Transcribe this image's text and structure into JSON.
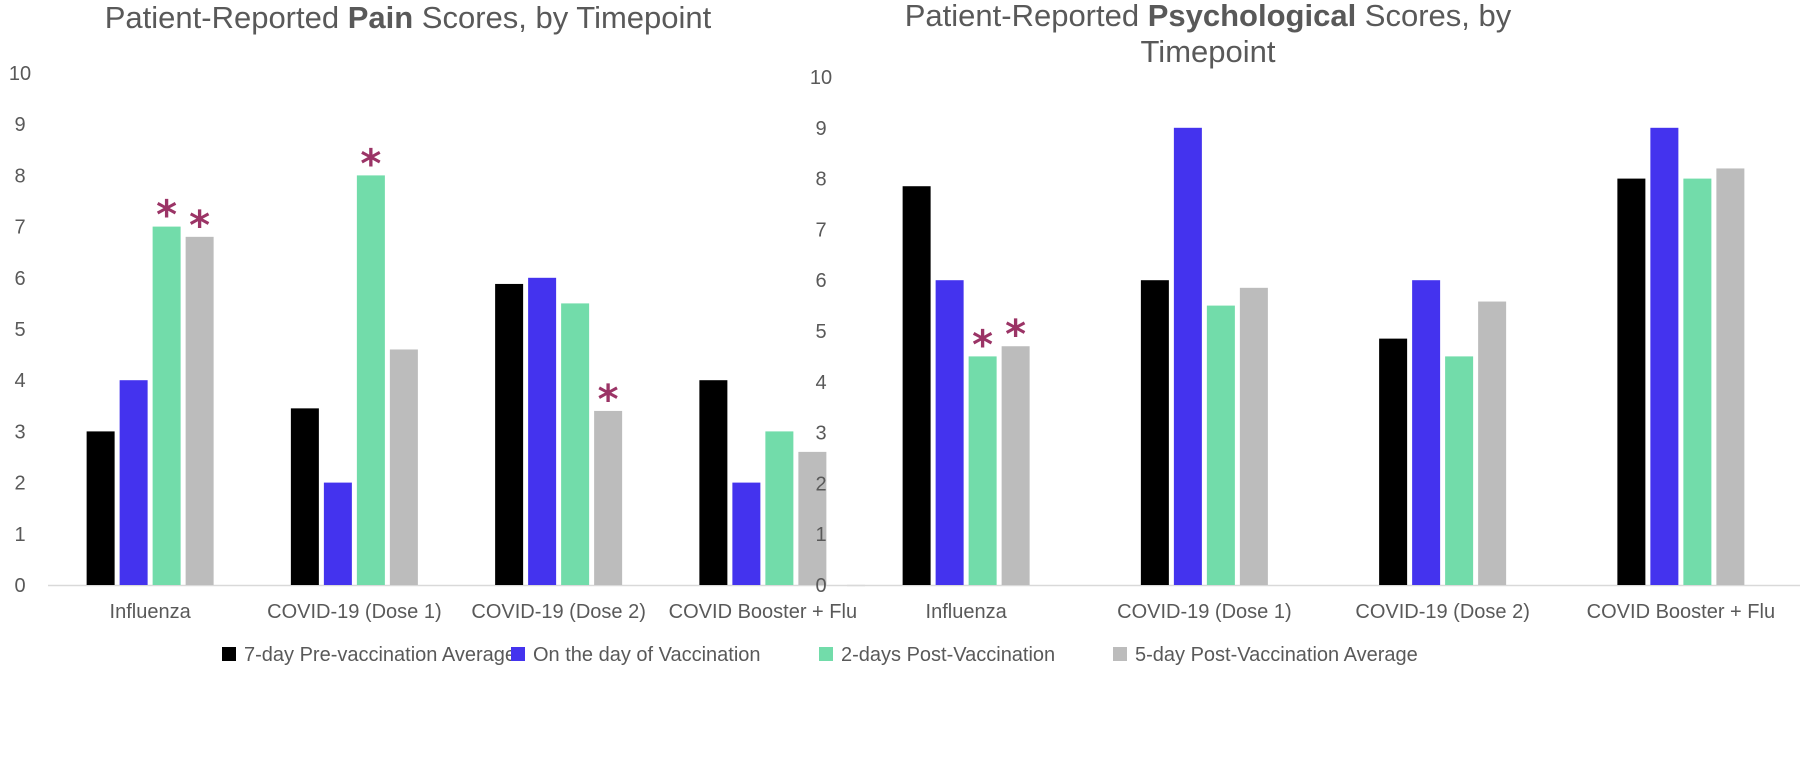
{
  "colors": {
    "series": [
      "#000000",
      "#4433ee",
      "#72dcaa",
      "#bcbcbc"
    ],
    "significance": "#9b3466",
    "axis": "#d9d9d9",
    "text": "#595959"
  },
  "significance_marker": "*",
  "chart_data": [
    {
      "type": "bar",
      "title_parts": [
        {
          "text": "Patient-Reported ",
          "bold": false
        },
        {
          "text": "Pain",
          "bold": true
        },
        {
          "text": " Scores, by Timepoint",
          "bold": false
        }
      ],
      "categories": [
        "Influenza",
        "COVID-19 (Dose 1)",
        "COVID-19 (Dose 2)",
        "COVID Booster + Flu"
      ],
      "yticks": [
        "0",
        "1",
        "2",
        "3",
        "4",
        "5",
        "6",
        "7",
        "8",
        "9",
        "10"
      ],
      "ylim": [
        0,
        10
      ],
      "grid": false,
      "series": [
        {
          "name": "7-day Pre-vaccination Average",
          "values": [
            3.0,
            3.45,
            5.88,
            4.0
          ]
        },
        {
          "name": "On the day of Vaccination",
          "values": [
            4.0,
            2.0,
            6.0,
            2.0
          ]
        },
        {
          "name": "2-days Post-Vaccination",
          "values": [
            7.0,
            8.0,
            5.5,
            3.0
          ]
        },
        {
          "name": "5-day Post-Vaccination Average",
          "values": [
            6.8,
            4.6,
            3.4,
            2.6
          ]
        }
      ],
      "significant": [
        [
          0,
          2
        ],
        [
          0,
          3
        ],
        [
          1,
          2
        ],
        [
          2,
          3
        ]
      ]
    },
    {
      "type": "bar",
      "title_parts": [
        {
          "text": "Patient-Reported ",
          "bold": false
        },
        {
          "text": "Psychological",
          "bold": true
        },
        {
          "text": " Scores, by",
          "bold": false
        },
        {
          "text": "Timepoint",
          "bold": false,
          "newline": true
        }
      ],
      "categories": [
        "Influenza",
        "COVID-19 (Dose 1)",
        "COVID-19 (Dose 2)",
        "COVID Booster + Flu"
      ],
      "yticks": [
        "0",
        "1",
        "2",
        "3",
        "4",
        "5",
        "6",
        "7",
        "8",
        "9",
        "10"
      ],
      "ylim": [
        0,
        10
      ],
      "grid": false,
      "series": [
        {
          "name": "7-day Pre-vaccination Average",
          "values": [
            7.85,
            6.0,
            4.85,
            8.0
          ]
        },
        {
          "name": "On the day of Vaccination",
          "values": [
            6.0,
            9.0,
            6.0,
            9.0
          ]
        },
        {
          "name": "2-days Post-Vaccination",
          "values": [
            4.5,
            5.5,
            4.5,
            8.0
          ]
        },
        {
          "name": "5-day Post-Vaccination Average",
          "values": [
            4.7,
            5.85,
            5.58,
            8.2
          ]
        }
      ],
      "significant": [
        [
          0,
          2
        ],
        [
          0,
          3
        ]
      ]
    }
  ],
  "legend": {
    "position": "bottom",
    "entries": [
      "7-day Pre-vaccination Average",
      "On the day of Vaccination",
      "2-days Post-Vaccination",
      "5-day Post-Vaccination Average"
    ]
  }
}
